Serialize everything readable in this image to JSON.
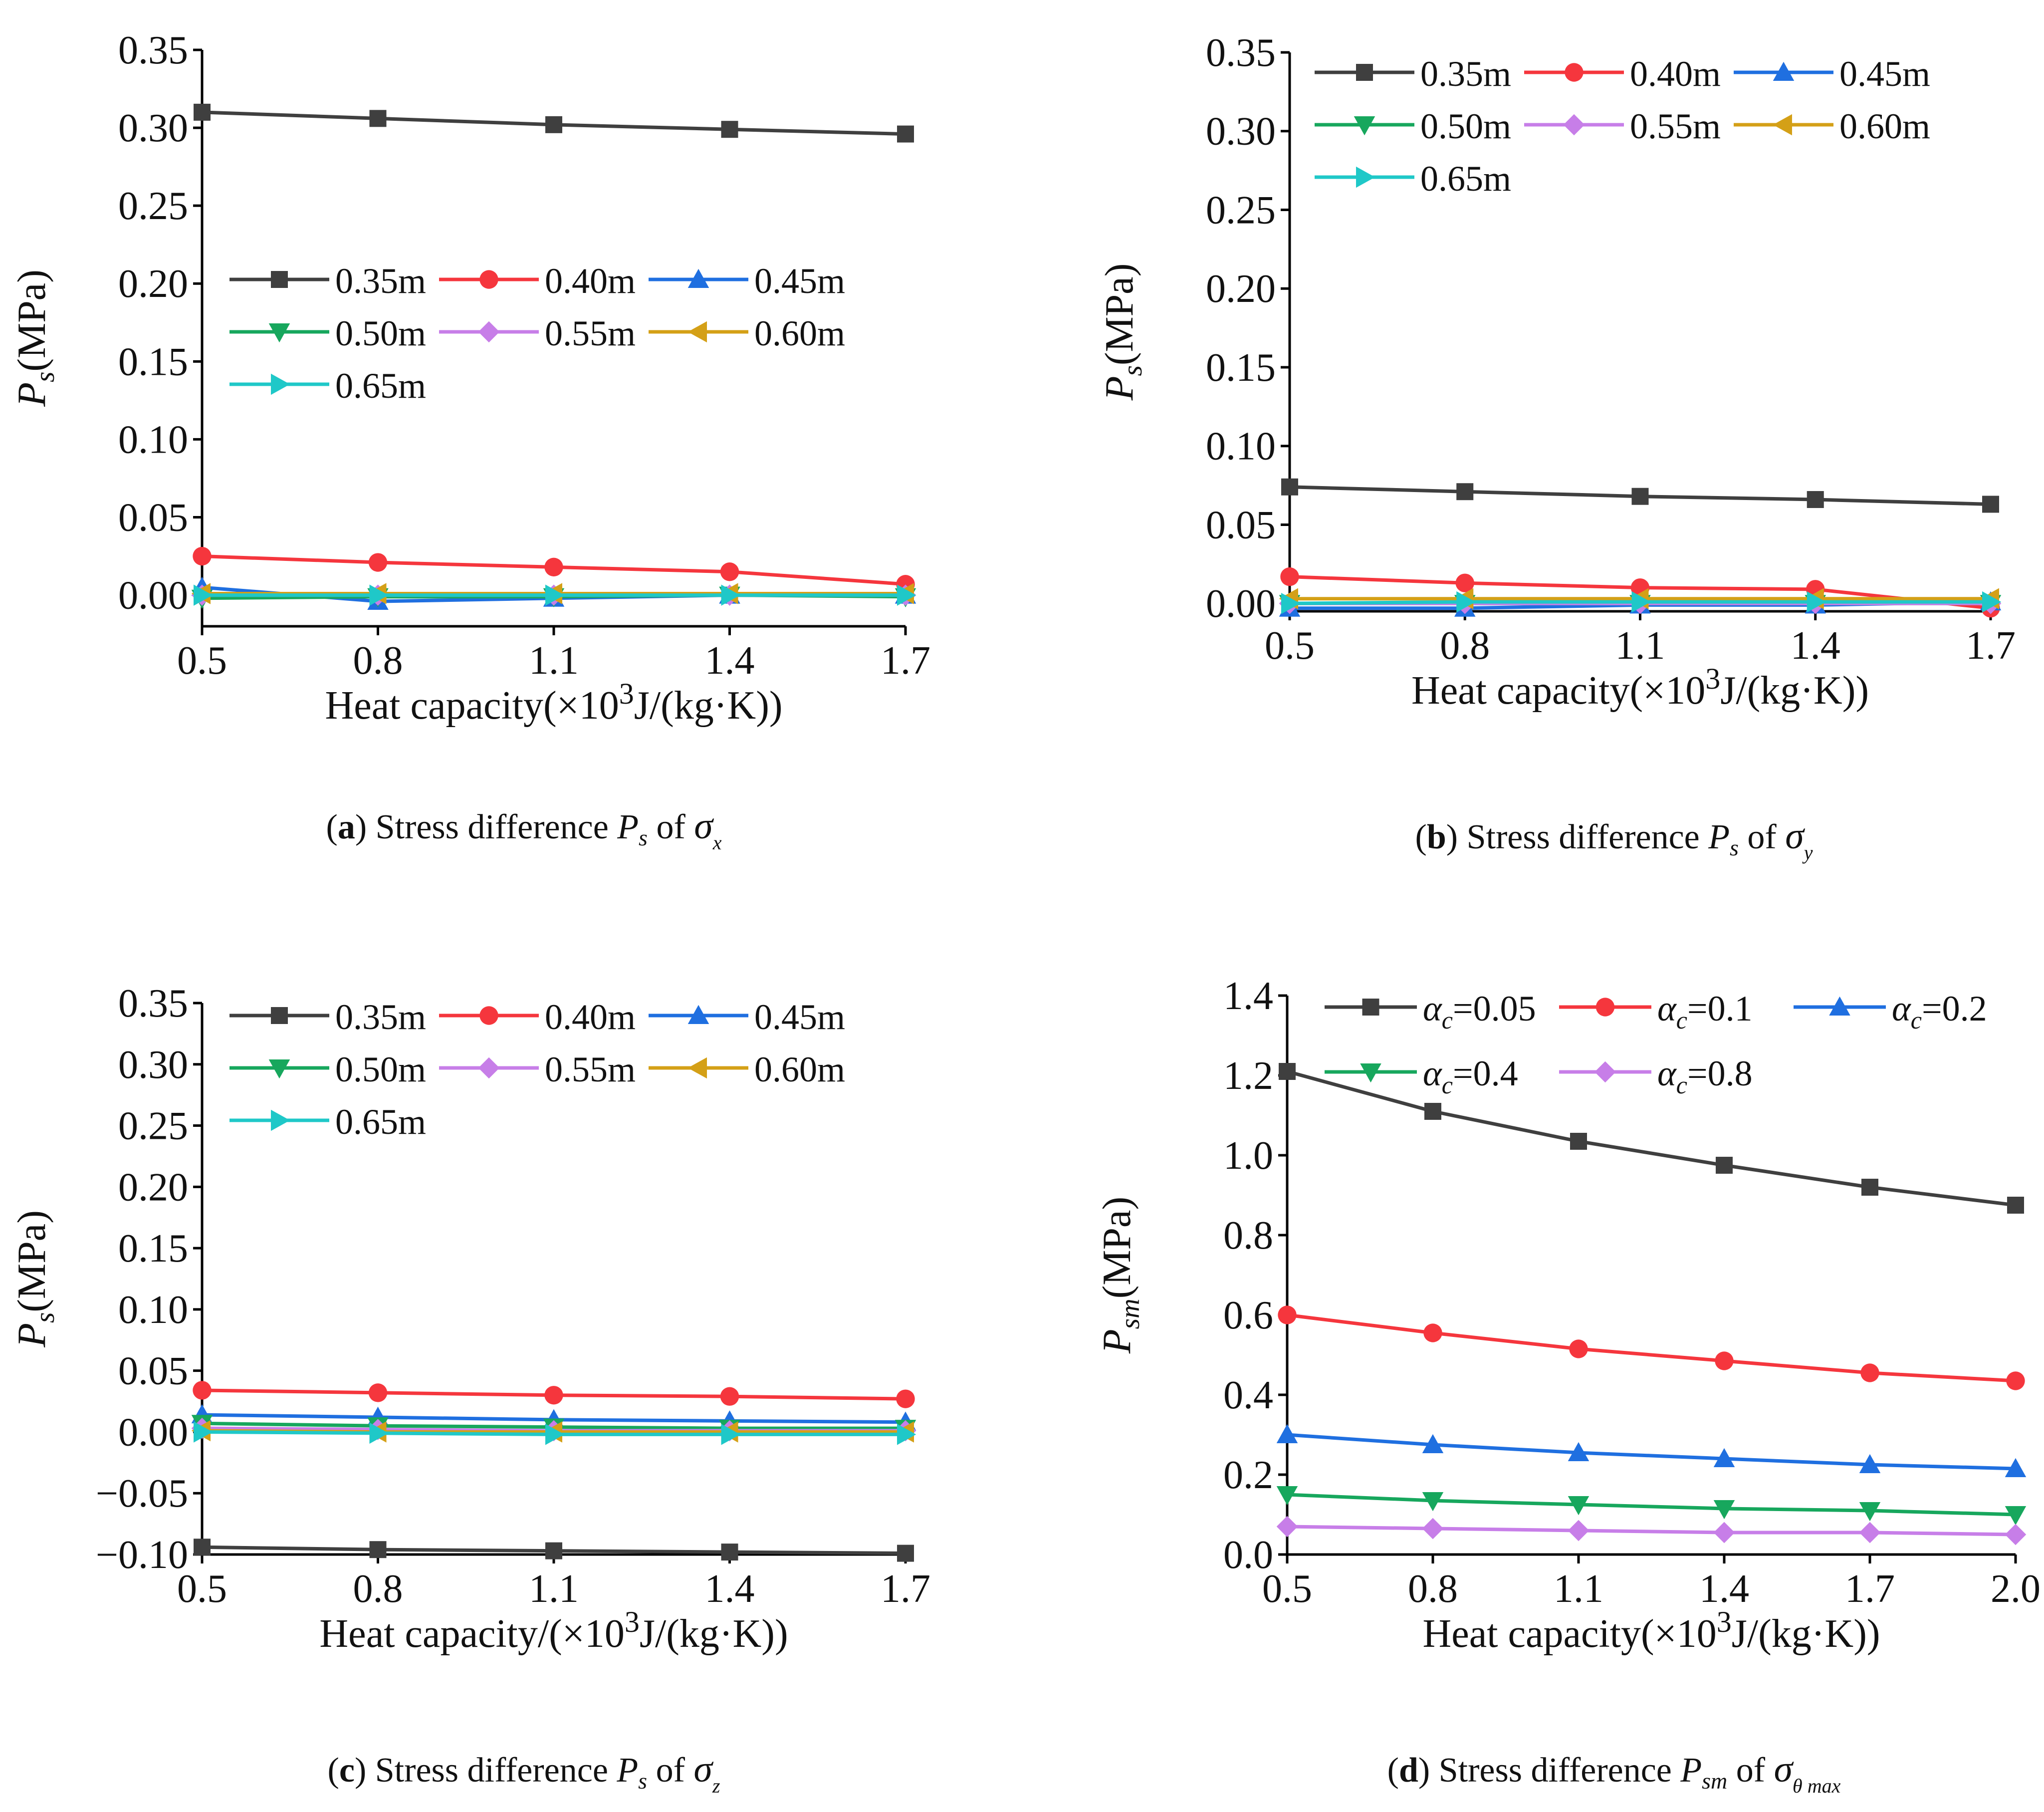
{
  "colors": {
    "axis": "#000000",
    "text": "#111111"
  },
  "series_style": [
    {
      "color": "#3f3f3f",
      "marker": "square"
    },
    {
      "color": "#f5363d",
      "marker": "circle"
    },
    {
      "color": "#1f6fe0",
      "marker": "triangle-up"
    },
    {
      "color": "#17a75d",
      "marker": "triangle-down"
    },
    {
      "color": "#c77ee8",
      "marker": "diamond"
    },
    {
      "color": "#d4a017",
      "marker": "triangle-left"
    },
    {
      "color": "#1fc8c8",
      "marker": "triangle-right"
    }
  ],
  "chart_data": [
    {
      "id": "a",
      "type": "line",
      "caption": {
        "letter": "a",
        "text": " Stress difference ",
        "var_main": "P",
        "var_sub": "s",
        "of_word": " of ",
        "sigma": "σ",
        "sigma_sub": "x"
      },
      "xlabel": {
        "pre": "Heat capacity(×10",
        "sup": "3",
        "post": "J/(kg·K))"
      },
      "ylabel": {
        "main": "P",
        "sub": "s",
        "unit": "(MPa)"
      },
      "x": [
        0.5,
        0.8,
        1.1,
        1.4,
        1.7
      ],
      "xlim": [
        0.5,
        1.7
      ],
      "ylim": [
        -0.02,
        0.35
      ],
      "xticks": [
        "0.5",
        "0.8",
        "1.1",
        "1.4",
        "1.7"
      ],
      "yticks": [
        "0.00",
        "0.05",
        "0.10",
        "0.15",
        "0.20",
        "0.25",
        "0.30",
        "0.35"
      ],
      "legend_position": "middle-left",
      "series": [
        {
          "label": "0.35m",
          "values": [
            0.31,
            0.306,
            0.302,
            0.299,
            0.296
          ]
        },
        {
          "label": "0.40m",
          "values": [
            0.025,
            0.021,
            0.018,
            0.015,
            0.007
          ]
        },
        {
          "label": "0.45m",
          "values": [
            0.005,
            -0.004,
            -0.002,
            0.0,
            0.0
          ]
        },
        {
          "label": "0.50m",
          "values": [
            -0.002,
            -0.001,
            -0.001,
            0.0,
            -0.001
          ]
        },
        {
          "label": "0.55m",
          "values": [
            0.0,
            0.0,
            0.0,
            0.0,
            0.0
          ]
        },
        {
          "label": "0.60m",
          "values": [
            0.001,
            0.001,
            0.001,
            0.001,
            0.001
          ]
        },
        {
          "label": "0.65m",
          "values": [
            0.0,
            0.0,
            0.0,
            0.0,
            0.0
          ]
        }
      ]
    },
    {
      "id": "b",
      "type": "line",
      "caption": {
        "letter": "b",
        "text": " Stress difference ",
        "var_main": "P",
        "var_sub": "s",
        "of_word": " of ",
        "sigma": "σ",
        "sigma_sub": "y"
      },
      "xlabel": {
        "pre": "Heat capacity(×10",
        "sup": "3",
        "post": "J/(kg·K))"
      },
      "ylabel": {
        "main": "P",
        "sub": "s",
        "unit": "(MPa)"
      },
      "x": [
        0.5,
        0.8,
        1.1,
        1.4,
        1.7
      ],
      "xlim": [
        0.5,
        1.7
      ],
      "ylim": [
        -0.005,
        0.35
      ],
      "xticks": [
        "0.5",
        "0.8",
        "1.1",
        "1.4",
        "1.7"
      ],
      "yticks": [
        "0.00",
        "0.05",
        "0.10",
        "0.15",
        "0.20",
        "0.25",
        "0.30",
        "0.35"
      ],
      "legend_position": "top-left",
      "series": [
        {
          "label": "0.35m",
          "values": [
            0.074,
            0.071,
            0.068,
            0.066,
            0.063
          ]
        },
        {
          "label": "0.40m",
          "values": [
            0.017,
            0.013,
            0.01,
            0.009,
            -0.003
          ]
        },
        {
          "label": "0.45m",
          "values": [
            -0.003,
            -0.003,
            -0.001,
            -0.001,
            0.001
          ]
        },
        {
          "label": "0.50m",
          "values": [
            0.0,
            0.0,
            0.0,
            0.0,
            0.0
          ]
        },
        {
          "label": "0.55m",
          "values": [
            0.0,
            0.0,
            0.0,
            0.0,
            0.0
          ]
        },
        {
          "label": "0.60m",
          "values": [
            0.003,
            0.003,
            0.003,
            0.003,
            0.003
          ]
        },
        {
          "label": "0.65m",
          "values": [
            0.0,
            0.001,
            0.001,
            0.001,
            0.001
          ]
        }
      ]
    },
    {
      "id": "c",
      "type": "line",
      "caption": {
        "letter": "c",
        "text": " Stress difference ",
        "var_main": "P",
        "var_sub": "s",
        "of_word": " of ",
        "sigma": "σ",
        "sigma_sub": "z"
      },
      "xlabel": {
        "pre": "Heat capacity/(×10",
        "sup": "3",
        "post": "J/(kg·K))"
      },
      "ylabel": {
        "main": "P",
        "sub": "s",
        "unit": "(MPa)"
      },
      "x": [
        0.5,
        0.8,
        1.1,
        1.4,
        1.7
      ],
      "xlim": [
        0.5,
        1.7
      ],
      "ylim": [
        -0.1,
        0.35
      ],
      "xticks": [
        "0.5",
        "0.8",
        "1.1",
        "1.4",
        "1.7"
      ],
      "yticks": [
        "−0.10",
        "−0.05",
        "0.00",
        "0.05",
        "0.10",
        "0.15",
        "0.20",
        "0.25",
        "0.30",
        "0.35"
      ],
      "legend_position": "top-left",
      "series": [
        {
          "label": "0.35m",
          "values": [
            -0.094,
            -0.096,
            -0.097,
            -0.098,
            -0.099
          ]
        },
        {
          "label": "0.40m",
          "values": [
            0.034,
            0.032,
            0.03,
            0.029,
            0.027
          ]
        },
        {
          "label": "0.45m",
          "values": [
            0.014,
            0.012,
            0.01,
            0.009,
            0.008
          ]
        },
        {
          "label": "0.50m",
          "values": [
            0.007,
            0.005,
            0.004,
            0.003,
            0.003
          ]
        },
        {
          "label": "0.55m",
          "values": [
            0.003,
            0.002,
            0.001,
            0.001,
            0.001
          ]
        },
        {
          "label": "0.60m",
          "values": [
            0.001,
            0.0,
            0.0,
            0.0,
            0.0
          ]
        },
        {
          "label": "0.65m",
          "values": [
            0.0,
            -0.001,
            -0.002,
            -0.002,
            -0.002
          ]
        }
      ]
    },
    {
      "id": "d",
      "type": "line",
      "caption": {
        "letter": "d",
        "text": " Stress difference ",
        "var_main": "P",
        "var_sub": "sm",
        "of_word": " of ",
        "sigma": "σ",
        "sigma_sub": "θ max"
      },
      "xlabel": {
        "pre": "Heat capacity(×10",
        "sup": "3",
        "post": "J/(kg·K))"
      },
      "ylabel": {
        "main": "P",
        "sub": "sm",
        "unit": "(MPa)"
      },
      "x": [
        0.5,
        0.8,
        1.1,
        1.4,
        1.7,
        2.0
      ],
      "xlim": [
        0.5,
        2.0
      ],
      "ylim": [
        0.0,
        1.4
      ],
      "xticks": [
        "0.5",
        "0.8",
        "1.1",
        "1.4",
        "1.7",
        "2.0"
      ],
      "yticks": [
        "0.0",
        "0.2",
        "0.4",
        "0.6",
        "0.8",
        "1.0",
        "1.2",
        "1.4"
      ],
      "legend_position": "top-left",
      "series": [
        {
          "label": "=0.05",
          "alpha": "α",
          "alpha_sub": "c",
          "values": [
            1.21,
            1.11,
            1.035,
            0.975,
            0.92,
            0.875
          ]
        },
        {
          "label": "=0.1",
          "alpha": "α",
          "alpha_sub": "c",
          "values": [
            0.6,
            0.555,
            0.515,
            0.485,
            0.455,
            0.435
          ]
        },
        {
          "label": "=0.2",
          "alpha": "α",
          "alpha_sub": "c",
          "values": [
            0.3,
            0.275,
            0.255,
            0.24,
            0.225,
            0.215
          ]
        },
        {
          "label": "=0.4",
          "alpha": "α",
          "alpha_sub": "c",
          "values": [
            0.15,
            0.135,
            0.125,
            0.115,
            0.11,
            0.1
          ]
        },
        {
          "label": "=0.8",
          "alpha": "α",
          "alpha_sub": "c",
          "values": [
            0.07,
            0.065,
            0.06,
            0.055,
            0.055,
            0.05
          ]
        }
      ]
    }
  ]
}
